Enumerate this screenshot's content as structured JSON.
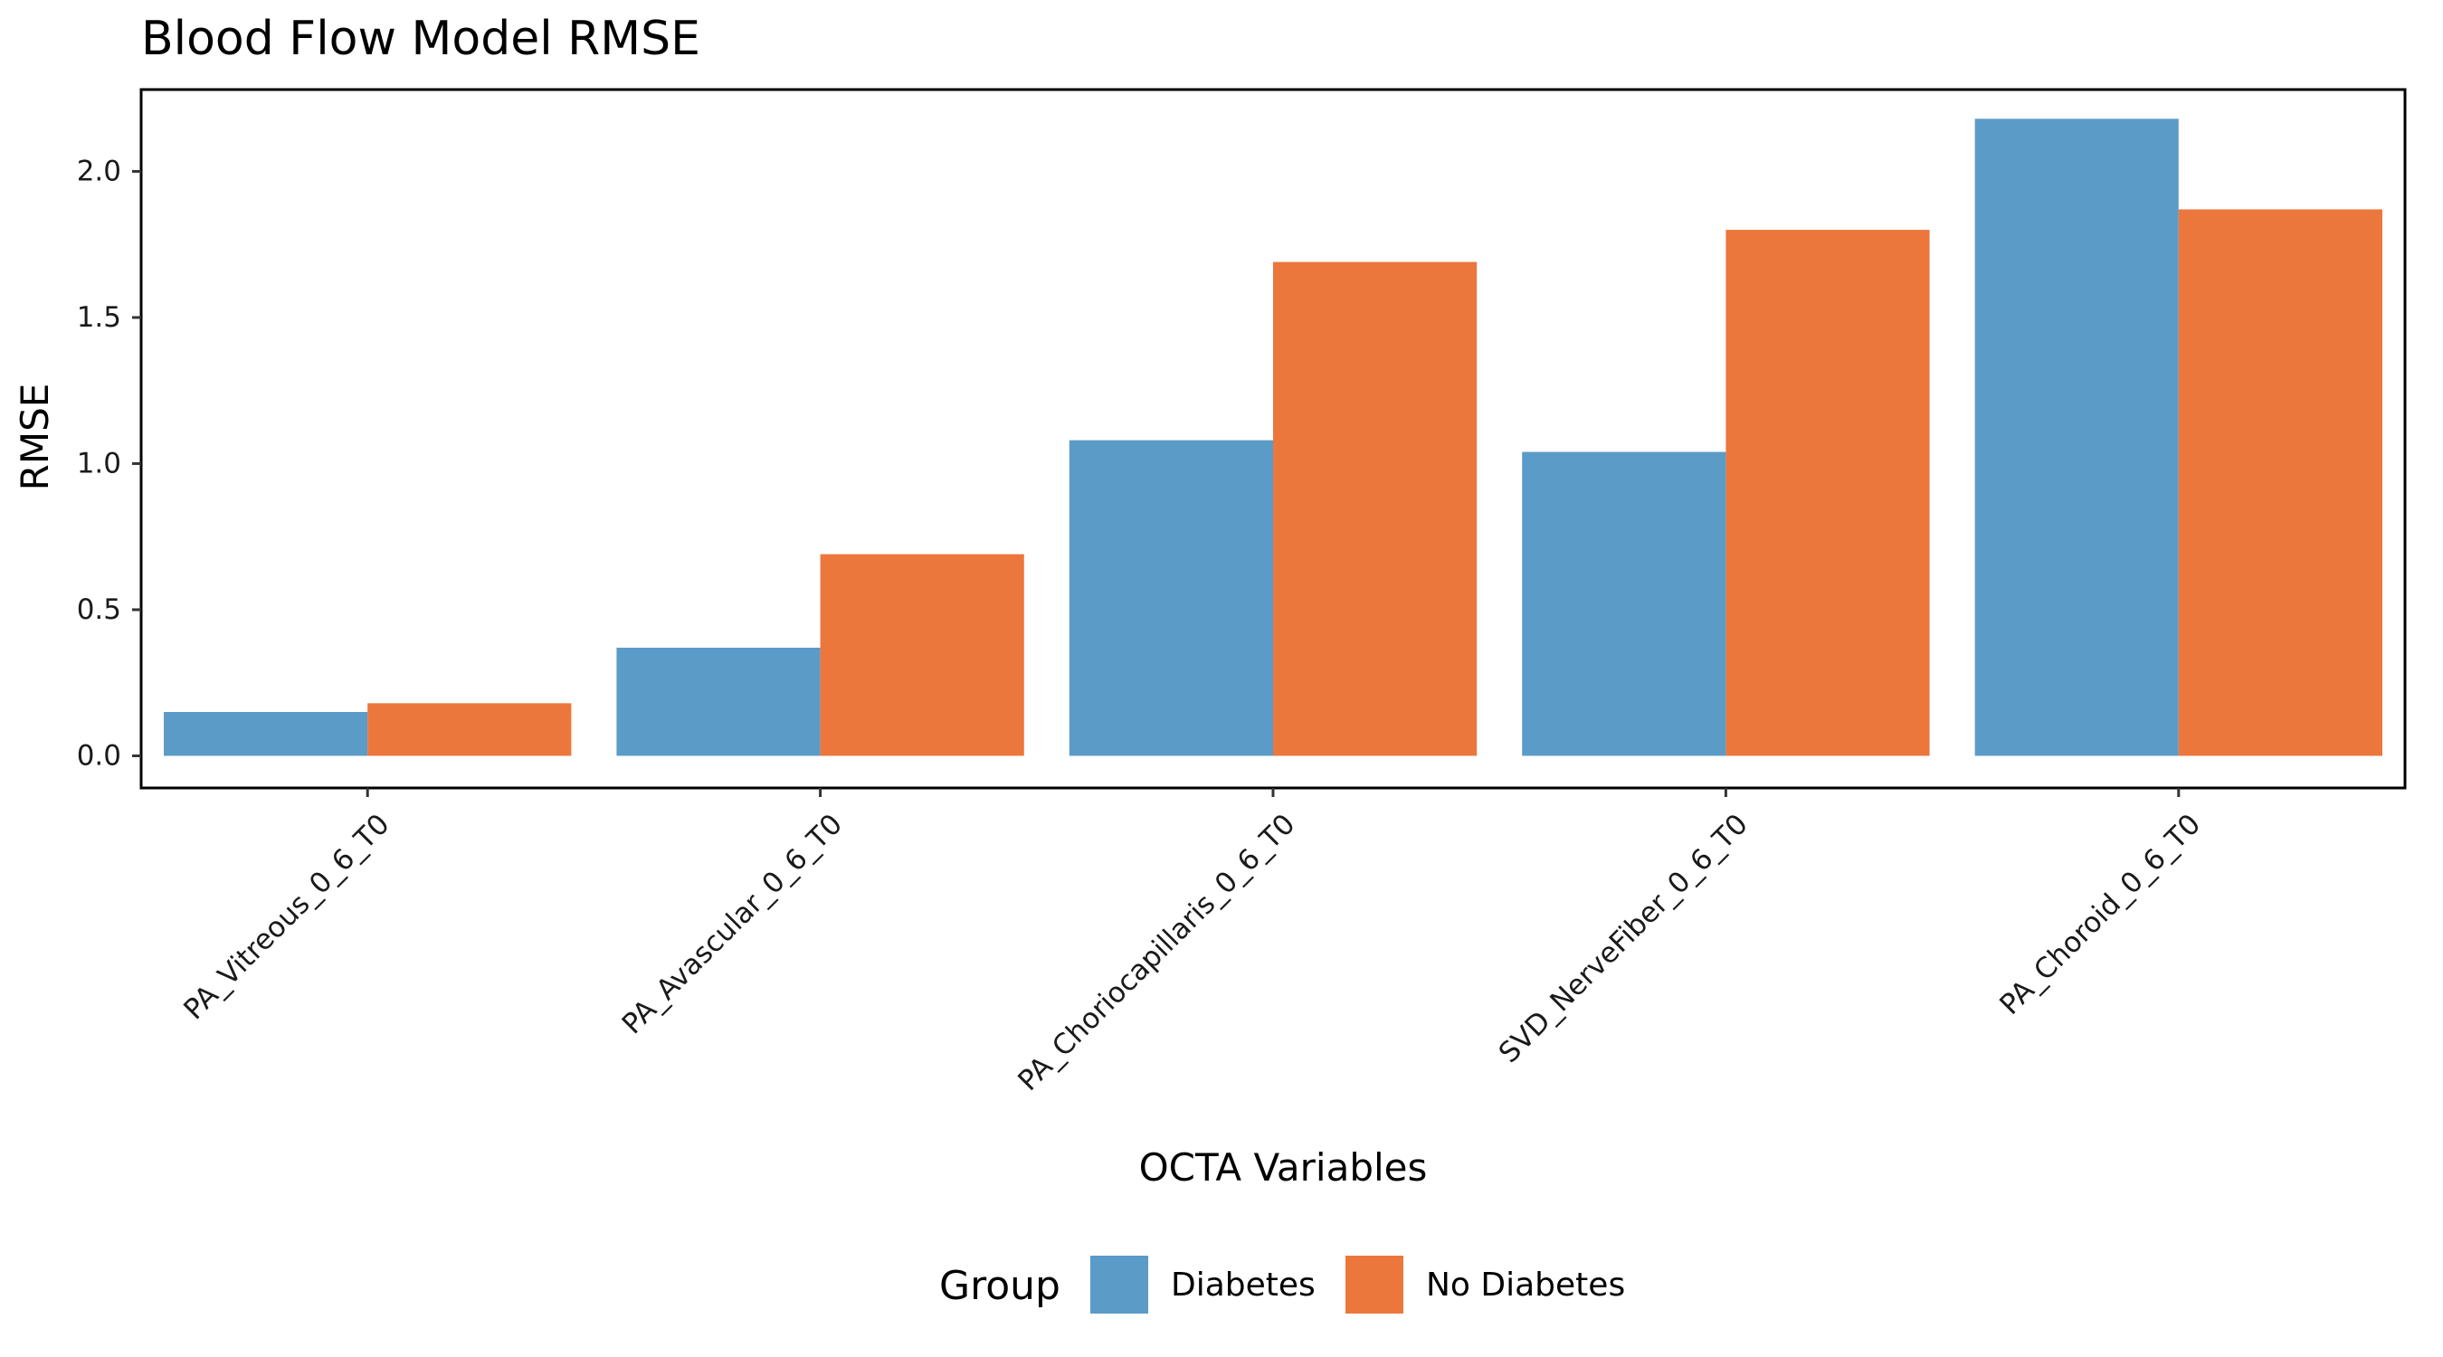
{
  "chart_data": {
    "type": "bar",
    "title": "Blood Flow Model RMSE",
    "xlabel": "OCTA Variables",
    "ylabel": "RMSE",
    "categories": [
      "PA_Vitreous_0_6_T0",
      "PA_Avascular_0_6_T0",
      "PA_Choriocapillaris_0_6_T0",
      "SVD_NerveFiber_0_6_T0",
      "PA_Choroid_0_6_T0"
    ],
    "series": [
      {
        "name": "Diabetes",
        "color": "#5b9bc8",
        "values": [
          0.15,
          0.37,
          1.08,
          1.04,
          2.18
        ]
      },
      {
        "name": "No Diabetes",
        "color": "#ec773d",
        "values": [
          0.18,
          0.69,
          1.69,
          1.8,
          1.87
        ]
      }
    ],
    "ylim": [
      -0.11,
      2.28
    ],
    "yticks": [
      0.0,
      0.5,
      1.0,
      1.5,
      2.0
    ],
    "ytick_labels": [
      "0.0",
      "0.5",
      "1.0",
      "1.5",
      "2.0"
    ],
    "grid": false,
    "legend": {
      "title": "Group",
      "position": "bottom"
    }
  }
}
